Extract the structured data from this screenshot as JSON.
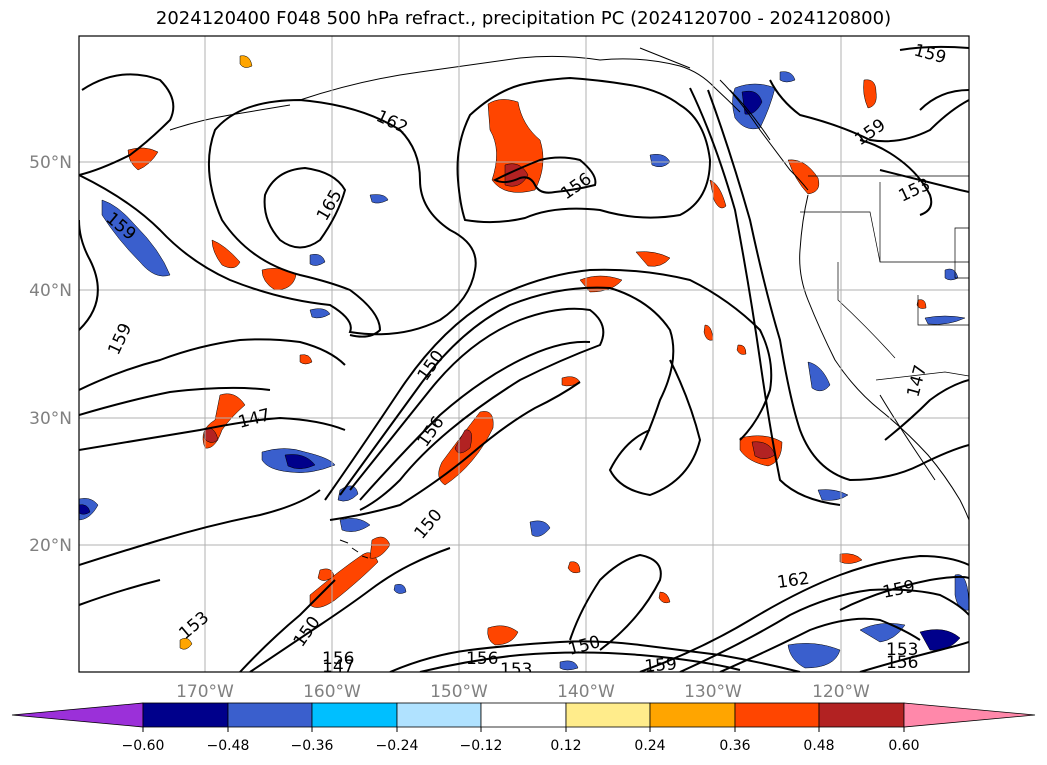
{
  "title": "2024120400 F048 500 hPa refract., precipitation PC (2024120700 - 2024120800)",
  "map": {
    "lat_labels": [
      "50°N",
      "40°N",
      "30°N",
      "20°N"
    ],
    "lon_labels": [
      "170°W",
      "160°W",
      "150°W",
      "140°W",
      "130°W",
      "120°W"
    ]
  },
  "contour_labels": [
    {
      "text": "162",
      "kind": "contour"
    },
    {
      "text": "165",
      "kind": "contour"
    },
    {
      "text": "159",
      "kind": "contour"
    },
    {
      "text": "156",
      "kind": "contour"
    },
    {
      "text": "159",
      "kind": "contour"
    },
    {
      "text": "159",
      "kind": "contour"
    },
    {
      "text": "153",
      "kind": "contour"
    },
    {
      "text": "159",
      "kind": "contour"
    },
    {
      "text": "156",
      "kind": "contour"
    },
    {
      "text": "150",
      "kind": "contour"
    },
    {
      "text": "147",
      "kind": "contour"
    },
    {
      "text": "147",
      "kind": "contour"
    },
    {
      "text": "150",
      "kind": "contour"
    },
    {
      "text": "153",
      "kind": "contour"
    },
    {
      "text": "150",
      "kind": "contour"
    },
    {
      "text": "156",
      "kind": "contour"
    },
    {
      "text": "147",
      "kind": "contour"
    },
    {
      "text": "156",
      "kind": "contour"
    },
    {
      "text": "153",
      "kind": "contour"
    },
    {
      "text": "150",
      "kind": "contour"
    },
    {
      "text": "159",
      "kind": "contour"
    },
    {
      "text": "162",
      "kind": "contour"
    },
    {
      "text": "159",
      "kind": "contour"
    },
    {
      "text": "153",
      "kind": "contour"
    },
    {
      "text": "156",
      "kind": "contour"
    }
  ],
  "colorbar": {
    "tick_labels": [
      "−0.60",
      "−0.48",
      "−0.36",
      "−0.24",
      "−0.12",
      "0.12",
      "0.24",
      "0.36",
      "0.48",
      "0.60"
    ],
    "colors": [
      "#9b30d9",
      "#00008b",
      "#3a5fcd",
      "#00bfff",
      "#b0e2ff",
      "#ffffff",
      "#ffec8b",
      "#ffa500",
      "#ff4500",
      "#b22222",
      "#ff88aa"
    ]
  }
}
